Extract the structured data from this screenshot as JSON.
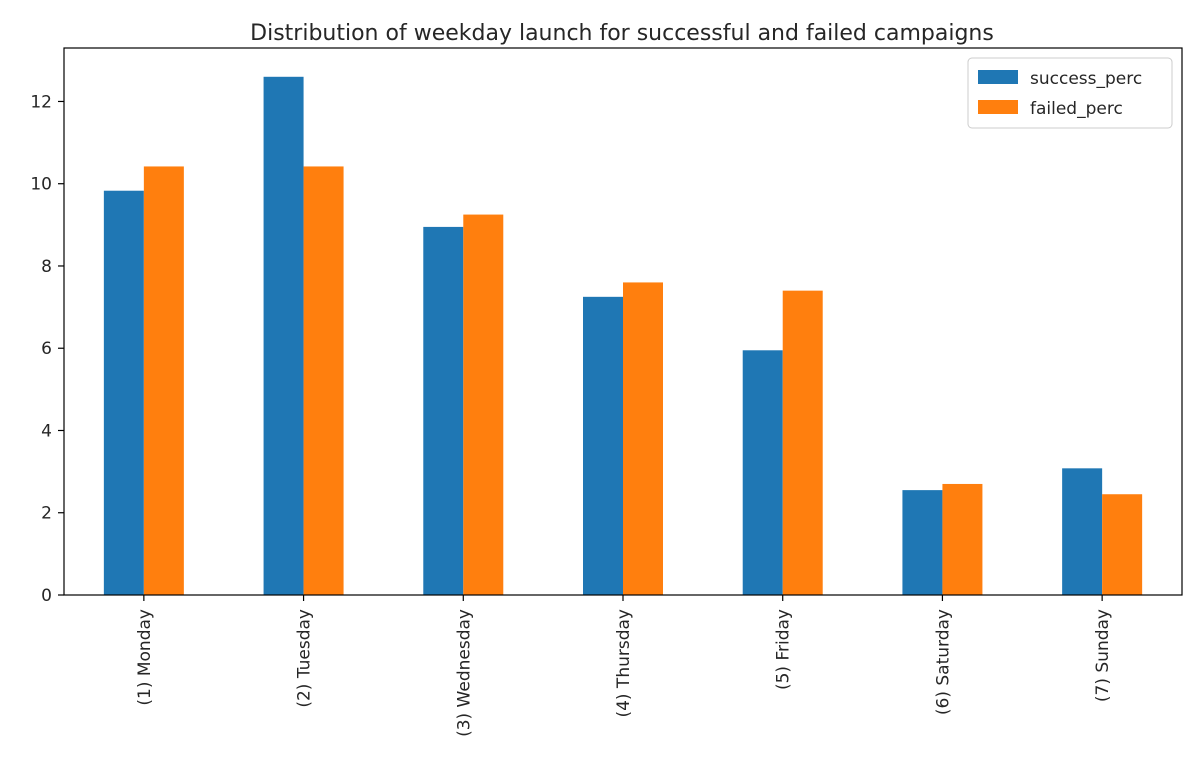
{
  "chart_data": {
    "type": "bar",
    "title": "Distribution of weekday launch for successful and failed campaigns",
    "xlabel": "",
    "ylabel": "",
    "categories": [
      "(1) Monday",
      "(2) Tuesday",
      "(3) Wednesday",
      "(4) Thursday",
      "(5) Friday",
      "(6) Saturday",
      "(7) Sunday"
    ],
    "series": [
      {
        "name": "success_perc",
        "color": "#1f77b4",
        "values": [
          9.83,
          12.6,
          8.95,
          7.25,
          5.95,
          2.55,
          3.08
        ]
      },
      {
        "name": "failed_perc",
        "color": "#ff7f0e",
        "values": [
          10.42,
          10.42,
          9.25,
          7.6,
          7.4,
          2.7,
          2.45
        ]
      }
    ],
    "ylim": [
      0,
      13.3
    ],
    "yticks": [
      0,
      2,
      4,
      6,
      8,
      10,
      12
    ],
    "grid": false,
    "legend_position": "top-right"
  }
}
